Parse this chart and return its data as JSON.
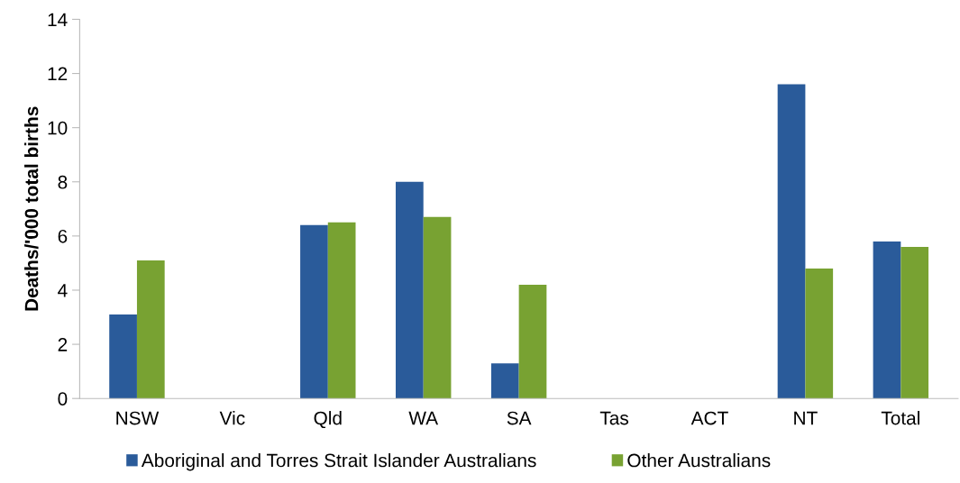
{
  "chart_data": {
    "type": "bar",
    "ylabel": "Deaths/'000 total births",
    "categories": [
      "NSW",
      "Vic",
      "Qld",
      "WA",
      "SA",
      "Tas",
      "ACT",
      "NT",
      "Total"
    ],
    "series": [
      {
        "name": "Aboriginal and Torres Strait Islander Australians",
        "color": "#2a5b9a",
        "values": [
          3.1,
          null,
          6.4,
          8.0,
          1.3,
          null,
          null,
          11.6,
          5.8
        ]
      },
      {
        "name": "Other Australians",
        "color": "#78a232",
        "values": [
          5.1,
          null,
          6.5,
          6.7,
          4.2,
          null,
          null,
          4.8,
          5.6
        ]
      }
    ],
    "ylim": [
      0,
      14
    ],
    "yticks": [
      0,
      2,
      4,
      6,
      8,
      10,
      12,
      14
    ],
    "grid": false,
    "legend": "bottom"
  }
}
